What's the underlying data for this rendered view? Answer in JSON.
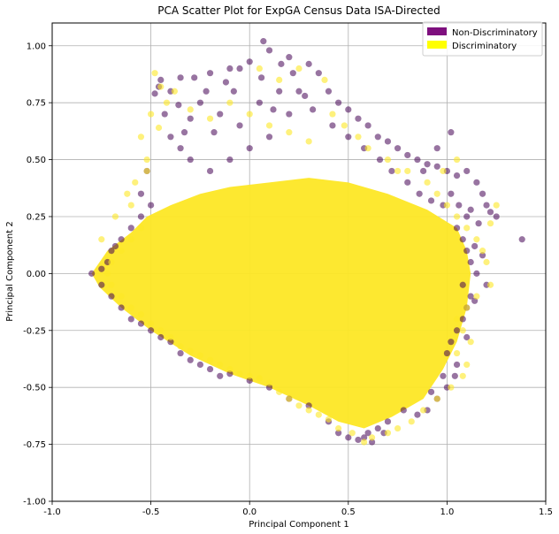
{
  "chart_data": {
    "type": "scatter",
    "title": "PCA Scatter Plot for ExpGA Census Data ISA-Directed",
    "xlabel": "Principal Component 1",
    "ylabel": "Principal Component 2",
    "xlim": [
      -1.0,
      1.5
    ],
    "ylim": [
      -1.0,
      1.1
    ],
    "xticks": [
      "-1.0",
      "-0.5",
      "0.0",
      "0.5",
      "1.0",
      "1.5"
    ],
    "yticks": [
      "-1.00",
      "-0.75",
      "-0.50",
      "-0.25",
      "0.00",
      "0.25",
      "0.50",
      "0.75",
      "1.00"
    ],
    "grid": true,
    "legend_position": "top-right",
    "series": [
      {
        "name": "Non-Discriminatory",
        "color": "#440154",
        "legend_color": "#7e0f7e",
        "points": [
          [
            0.07,
            1.02
          ],
          [
            0.1,
            0.98
          ],
          [
            0.2,
            0.95
          ],
          [
            0.3,
            0.92
          ],
          [
            0.35,
            0.88
          ],
          [
            0.0,
            0.93
          ],
          [
            -0.05,
            0.9
          ],
          [
            -0.1,
            0.9
          ],
          [
            -0.2,
            0.88
          ],
          [
            -0.28,
            0.86
          ],
          [
            -0.35,
            0.86
          ],
          [
            -0.45,
            0.85
          ],
          [
            -0.48,
            0.79
          ],
          [
            -0.43,
            0.7
          ],
          [
            -0.4,
            0.6
          ],
          [
            -0.35,
            0.55
          ],
          [
            -0.3,
            0.5
          ],
          [
            -0.2,
            0.45
          ],
          [
            -0.1,
            0.5
          ],
          [
            0.0,
            0.55
          ],
          [
            0.1,
            0.6
          ],
          [
            0.2,
            0.7
          ],
          [
            0.25,
            0.8
          ],
          [
            0.4,
            0.8
          ],
          [
            0.45,
            0.75
          ],
          [
            0.5,
            0.72
          ],
          [
            0.55,
            0.68
          ],
          [
            0.6,
            0.65
          ],
          [
            0.65,
            0.6
          ],
          [
            0.7,
            0.58
          ],
          [
            0.75,
            0.55
          ],
          [
            0.8,
            0.52
          ],
          [
            0.85,
            0.5
          ],
          [
            0.9,
            0.48
          ],
          [
            0.95,
            0.47
          ],
          [
            1.0,
            0.45
          ],
          [
            1.05,
            0.43
          ],
          [
            1.1,
            0.45
          ],
          [
            1.15,
            0.4
          ],
          [
            1.18,
            0.35
          ],
          [
            1.2,
            0.3
          ],
          [
            1.22,
            0.27
          ],
          [
            1.1,
            0.25
          ],
          [
            1.05,
            0.2
          ],
          [
            1.08,
            0.15
          ],
          [
            1.1,
            0.1
          ],
          [
            1.12,
            0.05
          ],
          [
            1.15,
            0.0
          ],
          [
            1.2,
            -0.05
          ],
          [
            1.12,
            -0.1
          ],
          [
            1.1,
            -0.15
          ],
          [
            1.08,
            -0.2
          ],
          [
            1.05,
            -0.25
          ],
          [
            1.02,
            -0.3
          ],
          [
            1.0,
            -0.35
          ],
          [
            1.05,
            -0.4
          ],
          [
            1.0,
            -0.5
          ],
          [
            0.95,
            -0.55
          ],
          [
            0.9,
            -0.6
          ],
          [
            0.85,
            -0.62
          ],
          [
            0.7,
            -0.65
          ],
          [
            0.65,
            -0.68
          ],
          [
            0.6,
            -0.7
          ],
          [
            0.5,
            -0.72
          ],
          [
            0.45,
            -0.7
          ],
          [
            0.55,
            -0.73
          ],
          [
            0.68,
            -0.7
          ],
          [
            1.38,
            0.15
          ],
          [
            1.25,
            0.25
          ],
          [
            1.02,
            0.62
          ],
          [
            0.95,
            0.55
          ],
          [
            0.88,
            0.45
          ],
          [
            -0.8,
            0.0
          ],
          [
            -0.75,
            0.02
          ],
          [
            -0.72,
            0.05
          ],
          [
            -0.7,
            0.1
          ],
          [
            -0.68,
            0.12
          ],
          [
            -0.65,
            0.15
          ],
          [
            -0.6,
            0.2
          ],
          [
            -0.55,
            0.25
          ],
          [
            -0.5,
            0.3
          ],
          [
            -0.52,
            0.45
          ],
          [
            -0.55,
            0.35
          ],
          [
            -0.75,
            -0.05
          ],
          [
            -0.7,
            -0.1
          ],
          [
            -0.65,
            -0.15
          ],
          [
            -0.6,
            -0.2
          ],
          [
            -0.55,
            -0.22
          ],
          [
            -0.5,
            -0.25
          ],
          [
            -0.45,
            -0.28
          ],
          [
            -0.4,
            -0.3
          ],
          [
            -0.35,
            -0.35
          ],
          [
            -0.3,
            -0.38
          ],
          [
            -0.25,
            -0.4
          ],
          [
            -0.2,
            -0.42
          ],
          [
            -0.15,
            -0.45
          ],
          [
            -0.1,
            -0.44
          ],
          [
            0.0,
            -0.47
          ],
          [
            0.1,
            -0.5
          ],
          [
            0.2,
            -0.55
          ],
          [
            0.3,
            -0.58
          ],
          [
            0.4,
            -0.65
          ],
          [
            0.58,
            -0.72
          ],
          [
            0.62,
            -0.74
          ],
          [
            -0.25,
            0.75
          ],
          [
            -0.15,
            0.7
          ],
          [
            -0.05,
            0.65
          ],
          [
            0.05,
            0.75
          ],
          [
            0.15,
            0.8
          ],
          [
            -0.3,
            0.68
          ],
          [
            -0.4,
            0.8
          ],
          [
            -0.33,
            0.62
          ],
          [
            0.22,
            0.88
          ],
          [
            0.28,
            0.78
          ],
          [
            0.12,
            0.72
          ],
          [
            -0.08,
            0.8
          ],
          [
            -0.18,
            0.62
          ],
          [
            0.32,
            0.72
          ],
          [
            0.42,
            0.65
          ],
          [
            0.5,
            0.6
          ],
          [
            0.58,
            0.55
          ],
          [
            0.66,
            0.5
          ],
          [
            0.72,
            0.45
          ],
          [
            0.8,
            0.4
          ],
          [
            0.86,
            0.35
          ],
          [
            0.92,
            0.32
          ],
          [
            0.98,
            0.3
          ],
          [
            1.02,
            0.35
          ],
          [
            1.06,
            0.3
          ],
          [
            1.12,
            0.28
          ],
          [
            1.16,
            0.22
          ],
          [
            1.14,
            0.12
          ],
          [
            1.18,
            0.08
          ],
          [
            1.08,
            -0.05
          ],
          [
            1.14,
            -0.12
          ],
          [
            1.1,
            -0.28
          ],
          [
            1.04,
            -0.45
          ],
          [
            0.98,
            -0.45
          ],
          [
            0.92,
            -0.52
          ],
          [
            0.78,
            -0.6
          ],
          [
            -0.46,
            0.82
          ],
          [
            -0.36,
            0.74
          ],
          [
            -0.12,
            0.84
          ],
          [
            0.16,
            0.92
          ],
          [
            0.06,
            0.86
          ],
          [
            -0.22,
            0.8
          ]
        ]
      },
      {
        "name": "Discriminatory",
        "color": "#fde725",
        "legend_color": "#ffff00",
        "points": [
          [
            -0.48,
            0.88
          ],
          [
            -0.45,
            0.82
          ],
          [
            -0.42,
            0.75
          ],
          [
            -0.38,
            0.8
          ],
          [
            -0.5,
            0.7
          ],
          [
            -0.55,
            0.6
          ],
          [
            -0.52,
            0.5
          ],
          [
            -0.46,
            0.64
          ],
          [
            -0.3,
            0.72
          ],
          [
            -0.2,
            0.68
          ],
          [
            -0.1,
            0.75
          ],
          [
            0.0,
            0.7
          ],
          [
            0.1,
            0.65
          ],
          [
            0.2,
            0.62
          ],
          [
            0.3,
            0.58
          ],
          [
            0.05,
            0.9
          ],
          [
            0.15,
            0.85
          ],
          [
            0.25,
            0.9
          ],
          [
            0.38,
            0.85
          ],
          [
            0.42,
            0.7
          ],
          [
            0.48,
            0.65
          ],
          [
            0.55,
            0.6
          ],
          [
            0.6,
            0.55
          ],
          [
            0.7,
            0.5
          ],
          [
            0.75,
            0.45
          ],
          [
            0.8,
            0.45
          ],
          [
            0.9,
            0.4
          ],
          [
            0.95,
            0.35
          ],
          [
            1.0,
            0.3
          ],
          [
            1.05,
            0.25
          ],
          [
            1.1,
            0.2
          ],
          [
            1.15,
            0.15
          ],
          [
            1.18,
            0.1
          ],
          [
            1.2,
            0.05
          ],
          [
            1.22,
            -0.05
          ],
          [
            1.15,
            -0.1
          ],
          [
            1.1,
            -0.15
          ],
          [
            1.05,
            -0.2
          ],
          [
            1.08,
            -0.25
          ],
          [
            1.12,
            -0.3
          ],
          [
            1.05,
            -0.35
          ],
          [
            1.1,
            -0.4
          ],
          [
            1.08,
            -0.45
          ],
          [
            1.02,
            -0.5
          ],
          [
            0.95,
            -0.55
          ],
          [
            0.88,
            -0.6
          ],
          [
            0.82,
            -0.65
          ],
          [
            0.75,
            -0.68
          ],
          [
            0.7,
            -0.7
          ],
          [
            0.62,
            -0.72
          ],
          [
            0.58,
            -0.74
          ],
          [
            0.52,
            -0.7
          ],
          [
            0.45,
            -0.68
          ],
          [
            0.4,
            -0.64
          ],
          [
            0.35,
            -0.62
          ],
          [
            0.3,
            -0.6
          ],
          [
            0.25,
            -0.58
          ],
          [
            0.2,
            -0.55
          ],
          [
            0.15,
            -0.52
          ],
          [
            0.1,
            -0.48
          ],
          [
            0.05,
            -0.46
          ],
          [
            0.0,
            -0.45
          ],
          [
            -0.05,
            -0.44
          ],
          [
            -0.1,
            -0.42
          ],
          [
            -0.15,
            -0.4
          ],
          [
            -0.2,
            -0.38
          ],
          [
            -0.25,
            -0.36
          ],
          [
            -0.3,
            -0.34
          ],
          [
            -0.35,
            -0.32
          ],
          [
            -0.4,
            -0.28
          ],
          [
            -0.45,
            -0.25
          ],
          [
            -0.5,
            -0.22
          ],
          [
            -0.55,
            -0.18
          ],
          [
            -0.6,
            -0.15
          ],
          [
            -0.65,
            -0.1
          ],
          [
            -0.7,
            -0.05
          ],
          [
            -0.72,
            0.0
          ],
          [
            -0.7,
            0.05
          ],
          [
            -0.65,
            0.1
          ],
          [
            -0.6,
            0.15
          ],
          [
            -0.55,
            0.2
          ],
          [
            -0.58,
            0.4
          ],
          [
            -0.62,
            0.35
          ],
          [
            -0.52,
            0.45
          ],
          [
            1.25,
            0.3
          ],
          [
            1.22,
            0.22
          ],
          [
            1.05,
            0.5
          ],
          [
            0.98,
            0.45
          ],
          [
            -0.75,
            0.15
          ],
          [
            -0.68,
            0.25
          ],
          [
            -0.6,
            0.3
          ]
        ]
      }
    ]
  }
}
